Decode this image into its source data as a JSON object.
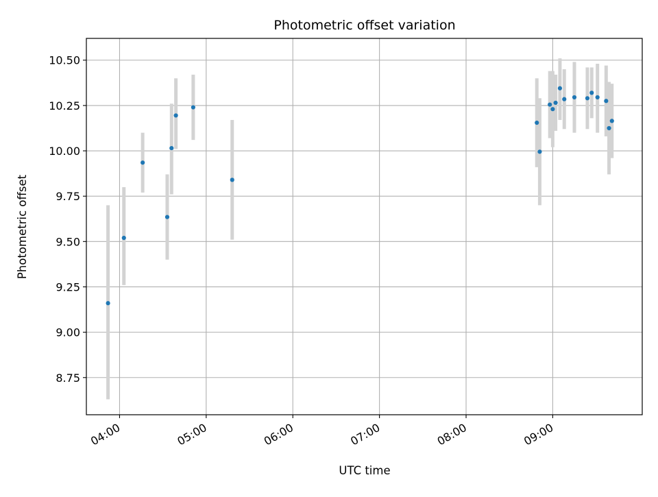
{
  "colors": {
    "point": "#1f77b4",
    "errorbar": "#d3d3d3",
    "grid": "#b0b0b0",
    "frame": "#000000",
    "background": "#ffffff"
  },
  "chart_data": {
    "type": "scatter",
    "title": "Photometric offset variation",
    "xlabel": "UTC time",
    "ylabel": "Photometric offset",
    "xlim": [
      "03:37",
      "10:02"
    ],
    "ylim": [
      8.545,
      10.62
    ],
    "grid": true,
    "legend": "none",
    "x_ticks": [
      "04:00",
      "05:00",
      "06:00",
      "07:00",
      "08:00",
      "09:00"
    ],
    "y_ticks": [
      "8.75",
      "9.00",
      "9.25",
      "9.50",
      "9.75",
      "10.00",
      "10.25",
      "10.50"
    ],
    "points": [
      {
        "t": "03:52",
        "y": 9.16,
        "err_low": 8.63,
        "err_high": 9.7
      },
      {
        "t": "04:03",
        "y": 9.52,
        "err_low": 9.26,
        "err_high": 9.8
      },
      {
        "t": "04:16",
        "y": 9.935,
        "err_low": 9.77,
        "err_high": 10.1
      },
      {
        "t": "04:33",
        "y": 9.635,
        "err_low": 9.4,
        "err_high": 9.87
      },
      {
        "t": "04:36",
        "y": 10.015,
        "err_low": 9.76,
        "err_high": 10.26
      },
      {
        "t": "04:39",
        "y": 10.195,
        "err_low": 10.01,
        "err_high": 10.4
      },
      {
        "t": "04:51",
        "y": 10.24,
        "err_low": 10.06,
        "err_high": 10.42
      },
      {
        "t": "05:18",
        "y": 9.84,
        "err_low": 9.51,
        "err_high": 10.17
      },
      {
        "t": "08:49",
        "y": 10.155,
        "err_low": 9.91,
        "err_high": 10.4
      },
      {
        "t": "08:51",
        "y": 9.995,
        "err_low": 9.7,
        "err_high": 10.29
      },
      {
        "t": "08:58",
        "y": 10.255,
        "err_low": 10.07,
        "err_high": 10.44
      },
      {
        "t": "09:00",
        "y": 10.23,
        "err_low": 10.02,
        "err_high": 10.44
      },
      {
        "t": "09:02",
        "y": 10.265,
        "err_low": 10.11,
        "err_high": 10.42
      },
      {
        "t": "09:05",
        "y": 10.345,
        "err_low": 10.17,
        "err_high": 10.51
      },
      {
        "t": "09:08",
        "y": 10.285,
        "err_low": 10.12,
        "err_high": 10.45
      },
      {
        "t": "09:15",
        "y": 10.295,
        "err_low": 10.1,
        "err_high": 10.49
      },
      {
        "t": "09:24",
        "y": 10.29,
        "err_low": 10.12,
        "err_high": 10.46
      },
      {
        "t": "09:27",
        "y": 10.32,
        "err_low": 10.18,
        "err_high": 10.46
      },
      {
        "t": "09:31",
        "y": 10.295,
        "err_low": 10.1,
        "err_high": 10.48
      },
      {
        "t": "09:37",
        "y": 10.275,
        "err_low": 10.08,
        "err_high": 10.47
      },
      {
        "t": "09:39",
        "y": 10.125,
        "err_low": 9.87,
        "err_high": 10.38
      },
      {
        "t": "09:41",
        "y": 10.165,
        "err_low": 9.96,
        "err_high": 10.37
      }
    ]
  }
}
